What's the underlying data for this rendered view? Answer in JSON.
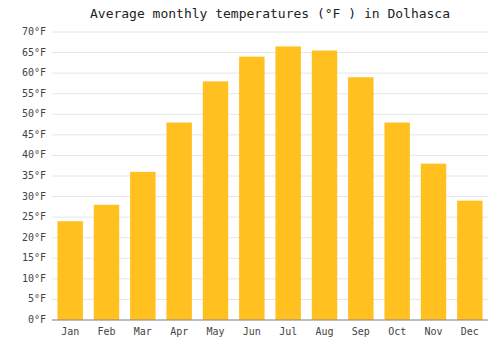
{
  "chart_data": {
    "type": "bar",
    "title": "Average monthly temperatures (°F ) in Dolhasca",
    "categories": [
      "Jan",
      "Feb",
      "Mar",
      "Apr",
      "May",
      "Jun",
      "Jul",
      "Aug",
      "Sep",
      "Oct",
      "Nov",
      "Dec"
    ],
    "values": [
      24,
      28,
      36,
      48,
      58,
      64,
      66.5,
      65.5,
      59,
      48,
      38,
      29
    ],
    "color": "#FFC020",
    "ylim": [
      0,
      70
    ],
    "yticks": [
      {
        "value": 0,
        "label": "0°F"
      },
      {
        "value": 5,
        "label": "5°F"
      },
      {
        "value": 10,
        "label": "10°F"
      },
      {
        "value": 15,
        "label": "15°F"
      },
      {
        "value": 20,
        "label": "20°F"
      },
      {
        "value": 25,
        "label": "25°F"
      },
      {
        "value": 30,
        "label": "30°F"
      },
      {
        "value": 35,
        "label": "35°F"
      },
      {
        "value": 40,
        "label": "40°F"
      },
      {
        "value": 45,
        "label": "45°F"
      },
      {
        "value": 50,
        "label": "50°F"
      },
      {
        "value": 55,
        "label": "55°F"
      },
      {
        "value": 60,
        "label": "60°F"
      },
      {
        "value": 65,
        "label": "65°F"
      },
      {
        "value": 70,
        "label": "70°F"
      }
    ],
    "grid": true
  }
}
